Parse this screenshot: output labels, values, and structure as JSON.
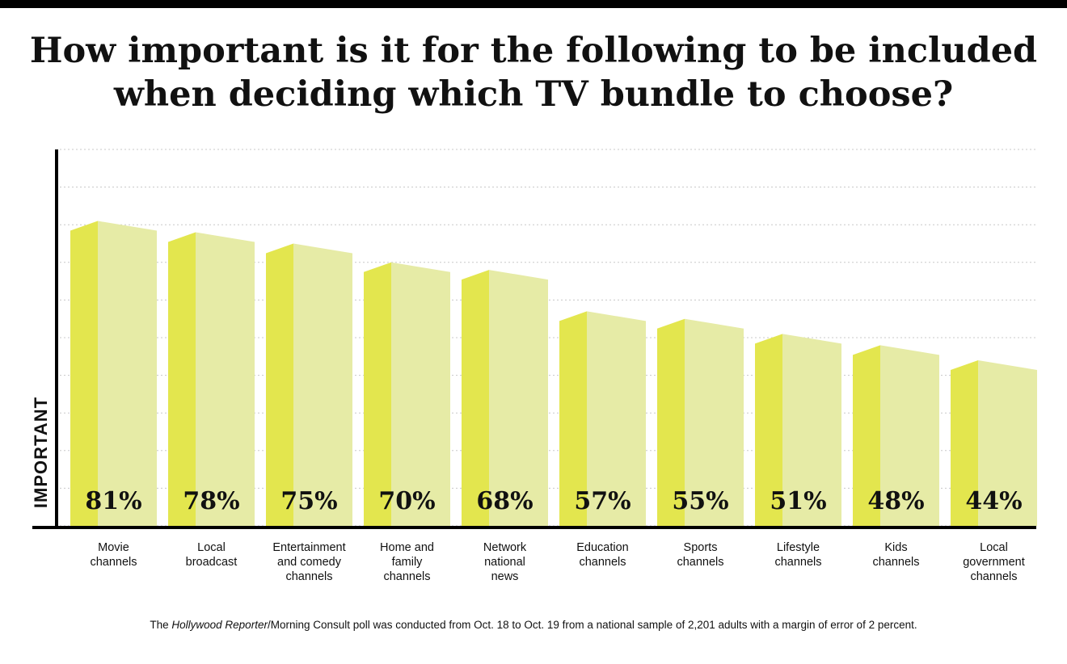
{
  "title_lines": [
    "How important is it for the following to be included",
    "when deciding which TV bundle to choose?"
  ],
  "colors": {
    "front": "#e3e64e",
    "side": "#e6eba6",
    "text": "#111111",
    "grid": "#c8c8c8"
  },
  "chart_data": {
    "type": "bar",
    "title": "How important is it for the following to be included when deciding which TV bundle to choose?",
    "ylabel": "IMPORTANT",
    "xlabel": "",
    "ylim": [
      0,
      100
    ],
    "grid": true,
    "categories": [
      [
        "Movie",
        "channels"
      ],
      [
        "Local",
        "broadcast"
      ],
      [
        "Entertainment",
        "and comedy",
        "channels"
      ],
      [
        "Home and",
        "family",
        "channels"
      ],
      [
        "Network",
        "national",
        "news"
      ],
      [
        "Education",
        "channels"
      ],
      [
        "Sports",
        "channels"
      ],
      [
        "Lifestyle",
        "channels"
      ],
      [
        "Kids",
        "channels"
      ],
      [
        "Local",
        "government",
        "channels"
      ]
    ],
    "values": [
      81,
      78,
      75,
      70,
      68,
      57,
      55,
      51,
      48,
      44
    ],
    "value_labels": [
      "81%",
      "78%",
      "75%",
      "70%",
      "68%",
      "57%",
      "55%",
      "51%",
      "48%",
      "44%"
    ]
  },
  "footnote": {
    "prefix": "The ",
    "italic": "Hollywood Reporter",
    "suffix": "/Morning Consult poll was conducted from Oct. 18 to Oct. 19 from a national sample of 2,201 adults with a margin of error of 2 percent."
  }
}
